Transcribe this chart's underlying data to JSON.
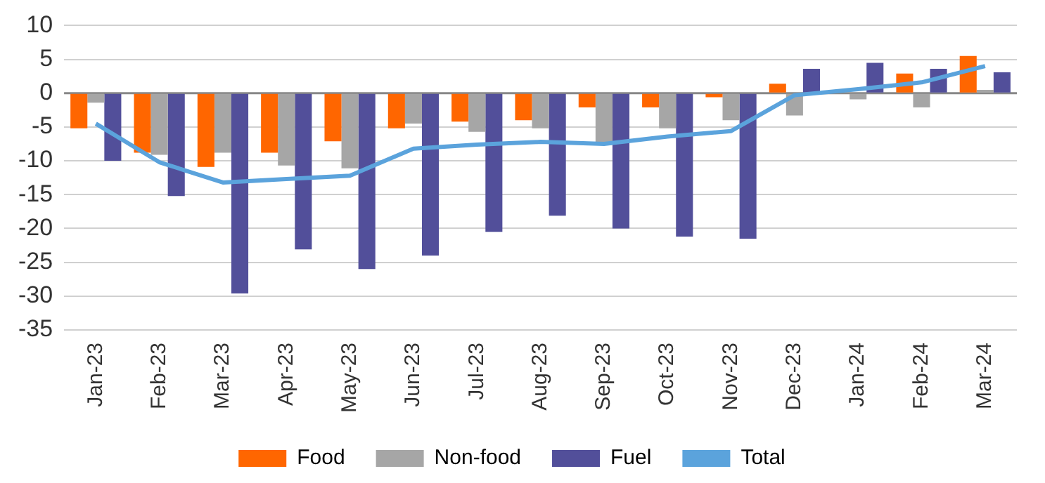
{
  "chart_data": {
    "type": "bar",
    "categories": [
      "Jan-23",
      "Feb-23",
      "Mar-23",
      "Apr-23",
      "May-23",
      "Jun-23",
      "Jul-23",
      "Aug-23",
      "Sep-23",
      "Oct-23",
      "Nov-23",
      "Dec-23",
      "Jan-24",
      "Feb-24",
      "Mar-24"
    ],
    "series": [
      {
        "name": "Food",
        "color": "#ff6600",
        "values": [
          -5.2,
          -8.8,
          -10.9,
          -8.8,
          -7.1,
          -5.2,
          -4.2,
          -4.0,
          -2.1,
          -2.1,
          -0.6,
          1.4,
          0,
          2.9,
          5.5
        ]
      },
      {
        "name": "Non-food",
        "color": "#a6a6a6",
        "values": [
          -1.4,
          -9.1,
          -8.8,
          -10.7,
          -11.1,
          -4.5,
          -5.7,
          -5.2,
          -7.4,
          -5.2,
          -4.0,
          -3.3,
          -0.9,
          -2.1,
          0.5
        ]
      },
      {
        "name": "Fuel",
        "color": "#524f9a",
        "values": [
          -10.0,
          -15.2,
          -29.6,
          -23.1,
          -26.0,
          -24.0,
          -20.5,
          -18.1,
          -20.0,
          -21.2,
          -21.5,
          3.6,
          4.5,
          3.6,
          3.1
        ]
      },
      {
        "name": "Total",
        "type": "line",
        "color": "#5ba3dc",
        "values": [
          -4.5,
          -10.2,
          -13.2,
          -12.7,
          -12.2,
          -8.2,
          -7.6,
          -7.2,
          -7.5,
          -6.4,
          -5.6,
          -0.3,
          0.6,
          1.6,
          4.0
        ]
      }
    ],
    "ylim": [
      -35,
      10
    ],
    "yticks": [
      -35,
      -30,
      -25,
      -20,
      -15,
      -10,
      -5,
      0,
      5,
      10
    ],
    "grid": "y",
    "legend": "bottom",
    "marker": "none"
  }
}
